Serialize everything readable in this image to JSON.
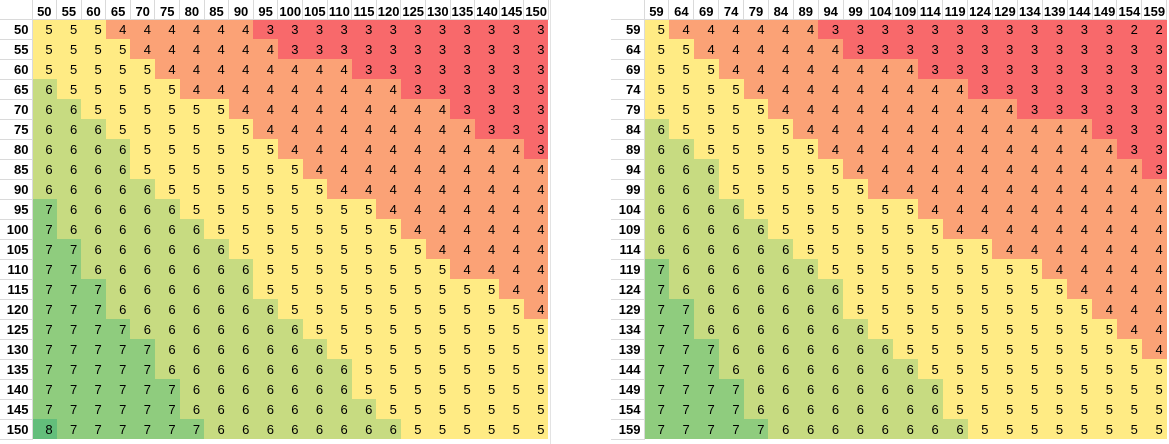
{
  "palette": {
    "2": "#f8696b",
    "3": "#f8696b",
    "4": "#fba276",
    "5": "#ffeb84",
    "6": "#c7db81",
    "7": "#8fcc7e",
    "8": "#63be7b"
  },
  "left_table": {
    "col_headers": [
      "50",
      "55",
      "60",
      "65",
      "70",
      "75",
      "80",
      "85",
      "90",
      "95",
      "100",
      "105",
      "110",
      "115",
      "120",
      "125",
      "130",
      "135",
      "140",
      "145",
      "150"
    ],
    "row_headers": [
      "50",
      "55",
      "60",
      "65",
      "70",
      "75",
      "80",
      "85",
      "90",
      "95",
      "100",
      "105",
      "110",
      "115",
      "120",
      "125",
      "130",
      "135",
      "140",
      "145",
      "150"
    ],
    "rows": [
      [
        "5",
        "5",
        "5",
        "4",
        "4",
        "4",
        "4",
        "4",
        "4",
        "3",
        "3",
        "3",
        "3",
        "3",
        "3",
        "3",
        "3",
        "3",
        "3",
        "3",
        "3"
      ],
      [
        "5",
        "5",
        "5",
        "5",
        "4",
        "4",
        "4",
        "4",
        "4",
        "4",
        "3",
        "3",
        "3",
        "3",
        "3",
        "3",
        "3",
        "3",
        "3",
        "3",
        "3"
      ],
      [
        "5",
        "5",
        "5",
        "5",
        "5",
        "4",
        "4",
        "4",
        "4",
        "4",
        "4",
        "4",
        "4",
        "3",
        "3",
        "3",
        "3",
        "3",
        "3",
        "3",
        "3"
      ],
      [
        "6",
        "5",
        "5",
        "5",
        "5",
        "5",
        "4",
        "4",
        "4",
        "4",
        "4",
        "4",
        "4",
        "4",
        "4",
        "3",
        "3",
        "3",
        "3",
        "3",
        "3"
      ],
      [
        "6",
        "6",
        "5",
        "5",
        "5",
        "5",
        "5",
        "5",
        "4",
        "4",
        "4",
        "4",
        "4",
        "4",
        "4",
        "4",
        "4",
        "3",
        "3",
        "3",
        "3"
      ],
      [
        "6",
        "6",
        "6",
        "5",
        "5",
        "5",
        "5",
        "5",
        "5",
        "4",
        "4",
        "4",
        "4",
        "4",
        "4",
        "4",
        "4",
        "4",
        "3",
        "3",
        "3"
      ],
      [
        "6",
        "6",
        "6",
        "6",
        "5",
        "5",
        "5",
        "5",
        "5",
        "5",
        "4",
        "4",
        "4",
        "4",
        "4",
        "4",
        "4",
        "4",
        "4",
        "4",
        "3"
      ],
      [
        "6",
        "6",
        "6",
        "6",
        "5",
        "5",
        "5",
        "5",
        "5",
        "5",
        "5",
        "4",
        "4",
        "4",
        "4",
        "4",
        "4",
        "4",
        "4",
        "4",
        "4"
      ],
      [
        "6",
        "6",
        "6",
        "6",
        "6",
        "5",
        "5",
        "5",
        "5",
        "5",
        "5",
        "5",
        "4",
        "4",
        "4",
        "4",
        "4",
        "4",
        "4",
        "4",
        "4"
      ],
      [
        "7",
        "6",
        "6",
        "6",
        "6",
        "6",
        "5",
        "5",
        "5",
        "5",
        "5",
        "5",
        "5",
        "5",
        "4",
        "4",
        "4",
        "4",
        "4",
        "4",
        "4"
      ],
      [
        "7",
        "6",
        "6",
        "6",
        "6",
        "6",
        "6",
        "5",
        "5",
        "5",
        "5",
        "5",
        "5",
        "5",
        "5",
        "4",
        "4",
        "4",
        "4",
        "4",
        "4"
      ],
      [
        "7",
        "7",
        "6",
        "6",
        "6",
        "6",
        "6",
        "6",
        "5",
        "5",
        "5",
        "5",
        "5",
        "5",
        "5",
        "5",
        "4",
        "4",
        "4",
        "4",
        "4"
      ],
      [
        "7",
        "7",
        "6",
        "6",
        "6",
        "6",
        "6",
        "6",
        "6",
        "5",
        "5",
        "5",
        "5",
        "5",
        "5",
        "5",
        "5",
        "4",
        "4",
        "4",
        "4"
      ],
      [
        "7",
        "7",
        "7",
        "6",
        "6",
        "6",
        "6",
        "6",
        "6",
        "5",
        "5",
        "5",
        "5",
        "5",
        "5",
        "5",
        "5",
        "5",
        "5",
        "4",
        "4"
      ],
      [
        "7",
        "7",
        "7",
        "6",
        "6",
        "6",
        "6",
        "6",
        "6",
        "6",
        "5",
        "5",
        "5",
        "5",
        "5",
        "5",
        "5",
        "5",
        "5",
        "5",
        "4"
      ],
      [
        "7",
        "7",
        "7",
        "7",
        "6",
        "6",
        "6",
        "6",
        "6",
        "6",
        "6",
        "5",
        "5",
        "5",
        "5",
        "5",
        "5",
        "5",
        "5",
        "5",
        "5"
      ],
      [
        "7",
        "7",
        "7",
        "7",
        "7",
        "6",
        "6",
        "6",
        "6",
        "6",
        "6",
        "6",
        "5",
        "5",
        "5",
        "5",
        "5",
        "5",
        "5",
        "5",
        "5"
      ],
      [
        "7",
        "7",
        "7",
        "7",
        "7",
        "6",
        "6",
        "6",
        "6",
        "6",
        "6",
        "6",
        "6",
        "5",
        "5",
        "5",
        "5",
        "5",
        "5",
        "5",
        "5"
      ],
      [
        "7",
        "7",
        "7",
        "7",
        "7",
        "7",
        "6",
        "6",
        "6",
        "6",
        "6",
        "6",
        "6",
        "5",
        "5",
        "5",
        "5",
        "5",
        "5",
        "5",
        "5"
      ],
      [
        "7",
        "7",
        "7",
        "7",
        "7",
        "7",
        "6",
        "6",
        "6",
        "6",
        "6",
        "6",
        "6",
        "6",
        "5",
        "5",
        "5",
        "5",
        "5",
        "5",
        "5"
      ],
      [
        "8",
        "7",
        "7",
        "7",
        "7",
        "7",
        "7",
        "6",
        "6",
        "6",
        "6",
        "6",
        "6",
        "6",
        "6",
        "5",
        "5",
        "5",
        "5",
        "5",
        "5"
      ]
    ]
  },
  "right_table": {
    "col_headers": [
      "59",
      "64",
      "69",
      "74",
      "79",
      "84",
      "89",
      "94",
      "99",
      "104",
      "109",
      "114",
      "119",
      "124",
      "129",
      "134",
      "139",
      "144",
      "149",
      "154",
      "159"
    ],
    "row_headers": [
      "59",
      "64",
      "69",
      "74",
      "79",
      "84",
      "89",
      "94",
      "99",
      "104",
      "109",
      "114",
      "119",
      "124",
      "129",
      "134",
      "139",
      "144",
      "149",
      "154",
      "159"
    ],
    "rows": [
      [
        "5",
        "4",
        "4",
        "4",
        "4",
        "4",
        "4",
        "3",
        "3",
        "3",
        "3",
        "3",
        "3",
        "3",
        "3",
        "3",
        "3",
        "3",
        "3",
        "2",
        "2"
      ],
      [
        "5",
        "5",
        "4",
        "4",
        "4",
        "4",
        "4",
        "4",
        "3",
        "3",
        "3",
        "3",
        "3",
        "3",
        "3",
        "3",
        "3",
        "3",
        "3",
        "3",
        "3"
      ],
      [
        "5",
        "5",
        "5",
        "4",
        "4",
        "4",
        "4",
        "4",
        "4",
        "4",
        "4",
        "3",
        "3",
        "3",
        "3",
        "3",
        "3",
        "3",
        "3",
        "3",
        "3"
      ],
      [
        "5",
        "5",
        "5",
        "5",
        "4",
        "4",
        "4",
        "4",
        "4",
        "4",
        "4",
        "4",
        "4",
        "3",
        "3",
        "3",
        "3",
        "3",
        "3",
        "3",
        "3"
      ],
      [
        "5",
        "5",
        "5",
        "5",
        "5",
        "4",
        "4",
        "4",
        "4",
        "4",
        "4",
        "4",
        "4",
        "4",
        "4",
        "3",
        "3",
        "3",
        "3",
        "3",
        "3"
      ],
      [
        "6",
        "5",
        "5",
        "5",
        "5",
        "5",
        "4",
        "4",
        "4",
        "4",
        "4",
        "4",
        "4",
        "4",
        "4",
        "4",
        "4",
        "4",
        "3",
        "3",
        "3"
      ],
      [
        "6",
        "6",
        "5",
        "5",
        "5",
        "5",
        "5",
        "4",
        "4",
        "4",
        "4",
        "4",
        "4",
        "4",
        "4",
        "4",
        "4",
        "4",
        "4",
        "3",
        "3"
      ],
      [
        "6",
        "6",
        "6",
        "5",
        "5",
        "5",
        "5",
        "5",
        "4",
        "4",
        "4",
        "4",
        "4",
        "4",
        "4",
        "4",
        "4",
        "4",
        "4",
        "4",
        "3"
      ],
      [
        "6",
        "6",
        "6",
        "5",
        "5",
        "5",
        "5",
        "5",
        "5",
        "4",
        "4",
        "4",
        "4",
        "4",
        "4",
        "4",
        "4",
        "4",
        "4",
        "4",
        "4"
      ],
      [
        "6",
        "6",
        "6",
        "6",
        "5",
        "5",
        "5",
        "5",
        "5",
        "5",
        "5",
        "4",
        "4",
        "4",
        "4",
        "4",
        "4",
        "4",
        "4",
        "4",
        "4"
      ],
      [
        "6",
        "6",
        "6",
        "6",
        "6",
        "5",
        "5",
        "5",
        "5",
        "5",
        "5",
        "5",
        "4",
        "4",
        "4",
        "4",
        "4",
        "4",
        "4",
        "4",
        "4"
      ],
      [
        "6",
        "6",
        "6",
        "6",
        "6",
        "6",
        "5",
        "5",
        "5",
        "5",
        "5",
        "5",
        "5",
        "5",
        "4",
        "4",
        "4",
        "4",
        "4",
        "4",
        "4"
      ],
      [
        "7",
        "6",
        "6",
        "6",
        "6",
        "6",
        "6",
        "5",
        "5",
        "5",
        "5",
        "5",
        "5",
        "5",
        "5",
        "5",
        "4",
        "4",
        "4",
        "4",
        "4"
      ],
      [
        "7",
        "6",
        "6",
        "6",
        "6",
        "6",
        "6",
        "6",
        "5",
        "5",
        "5",
        "5",
        "5",
        "5",
        "5",
        "5",
        "5",
        "4",
        "4",
        "4",
        "4"
      ],
      [
        "7",
        "7",
        "6",
        "6",
        "6",
        "6",
        "6",
        "6",
        "5",
        "5",
        "5",
        "5",
        "5",
        "5",
        "5",
        "5",
        "5",
        "5",
        "4",
        "4",
        "4"
      ],
      [
        "7",
        "7",
        "6",
        "6",
        "6",
        "6",
        "6",
        "6",
        "6",
        "5",
        "5",
        "5",
        "5",
        "5",
        "5",
        "5",
        "5",
        "5",
        "5",
        "4",
        "4"
      ],
      [
        "7",
        "7",
        "7",
        "6",
        "6",
        "6",
        "6",
        "6",
        "6",
        "6",
        "5",
        "5",
        "5",
        "5",
        "5",
        "5",
        "5",
        "5",
        "5",
        "5",
        "4"
      ],
      [
        "7",
        "7",
        "7",
        "6",
        "6",
        "6",
        "6",
        "6",
        "6",
        "6",
        "6",
        "5",
        "5",
        "5",
        "5",
        "5",
        "5",
        "5",
        "5",
        "5",
        "5"
      ],
      [
        "7",
        "7",
        "7",
        "7",
        "6",
        "6",
        "6",
        "6",
        "6",
        "6",
        "6",
        "6",
        "5",
        "5",
        "5",
        "5",
        "5",
        "5",
        "5",
        "5",
        "5"
      ],
      [
        "7",
        "7",
        "7",
        "7",
        "6",
        "6",
        "6",
        "6",
        "6",
        "6",
        "6",
        "6",
        "5",
        "5",
        "5",
        "5",
        "5",
        "5",
        "5",
        "5",
        "5"
      ],
      [
        "7",
        "7",
        "7",
        "7",
        "7",
        "6",
        "6",
        "6",
        "6",
        "6",
        "6",
        "6",
        "6",
        "5",
        "5",
        "5",
        "5",
        "5",
        "5",
        "5",
        "5"
      ]
    ]
  }
}
